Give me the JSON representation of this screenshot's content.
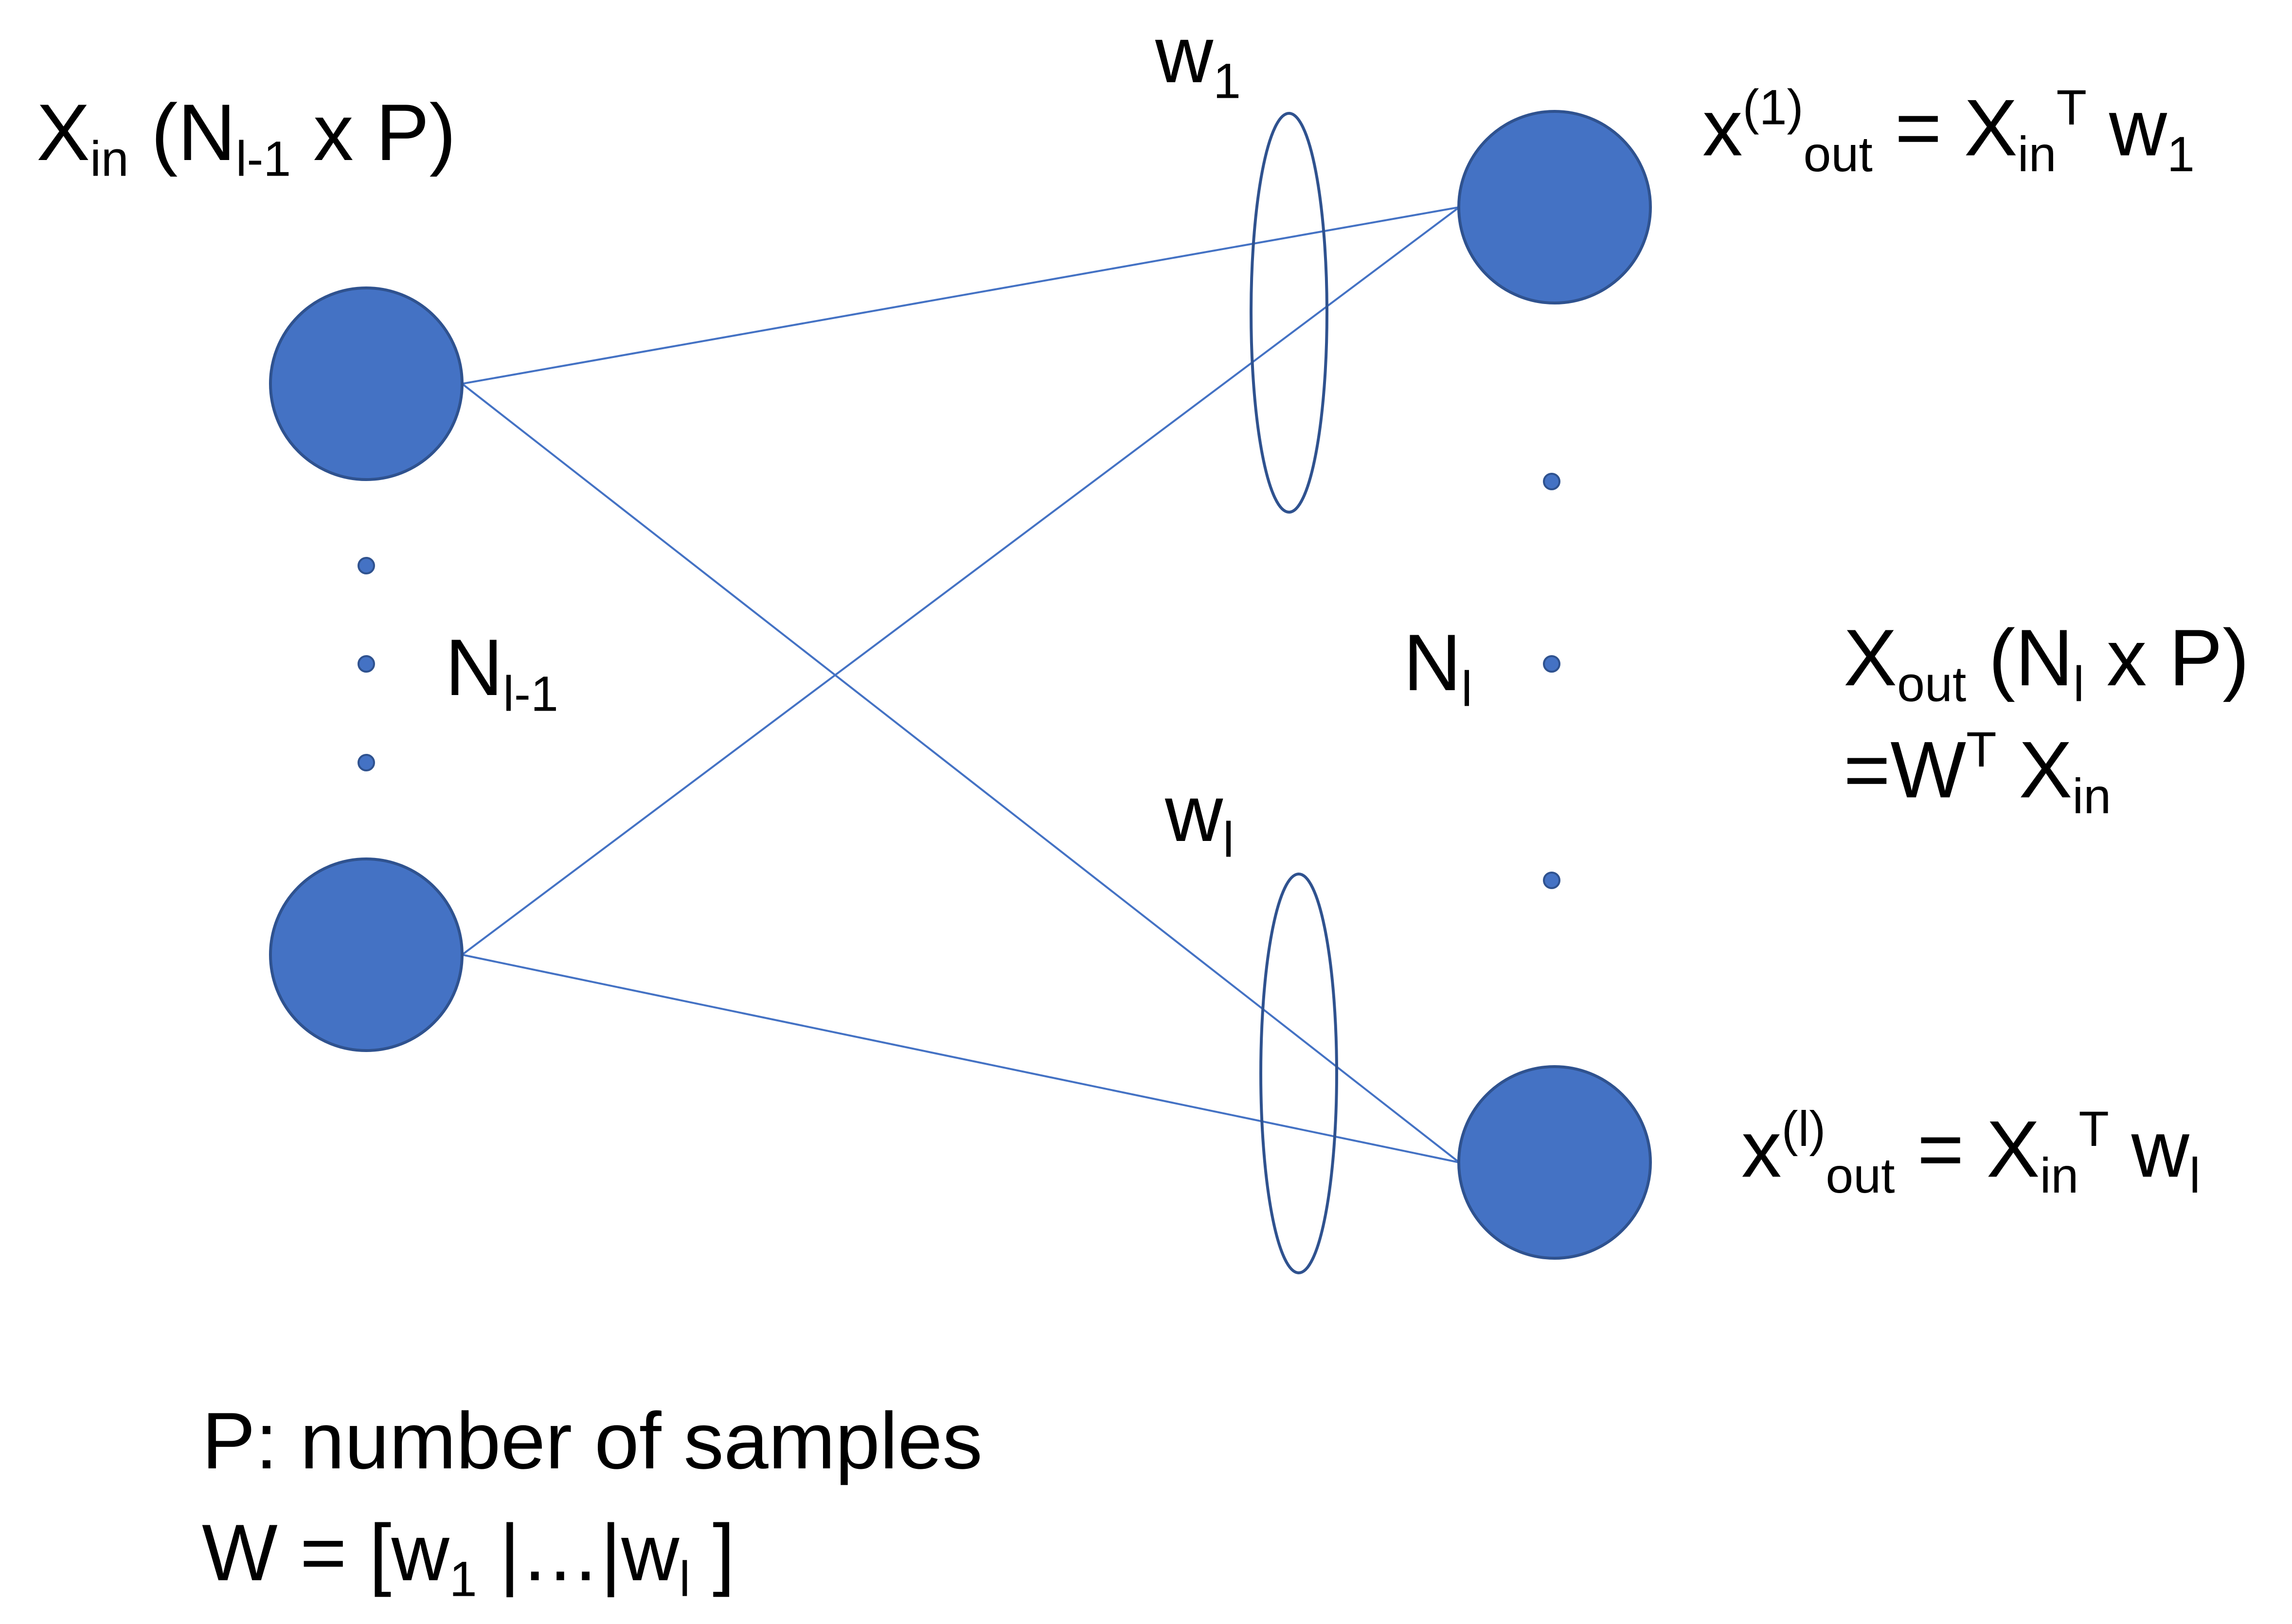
{
  "colors": {
    "node_fill": "#4472C4",
    "node_stroke": "#2F528F",
    "line": "#4472C4",
    "ellipse_stroke": "#2F528F",
    "text": "#000000"
  },
  "input_layer": {
    "label": {
      "main": "X",
      "sub": "in",
      "rest1": " (N",
      "sub2": "l-1",
      "rest2": " x P)"
    },
    "count": {
      "main": "N",
      "sub": "l-1"
    }
  },
  "output_layer": {
    "count": {
      "main": "N",
      "sub": "l"
    },
    "matrix": {
      "main": "X",
      "sub": "out",
      "rest1": " (N",
      "sub2": "l",
      "rest2": " x P)"
    },
    "matrix_formula": {
      "pre": "=W",
      "sup": "T",
      "main": " X",
      "sub": "in"
    },
    "output_1": {
      "main": "x",
      "sup": "(1)",
      "sub": "out",
      "eq": " = X",
      "sub2": "in",
      "sup2": "T",
      "w": " w",
      "wsub": "1"
    },
    "output_l": {
      "main": "x",
      "sup": "(l)",
      "sub": "out",
      "eq": " = X",
      "sub2": "in",
      "sup2": "T",
      "w": " w",
      "wsub": "l"
    }
  },
  "weights": {
    "w1": {
      "main": "w",
      "sub": "1"
    },
    "wl": {
      "main": "w",
      "sub": "l"
    }
  },
  "footer": {
    "line1": "P: number of samples",
    "line2": {
      "pre": "W = [w",
      "sub1": "1",
      "mid": " |…|w",
      "sub2": "l",
      "post": " ]"
    }
  }
}
